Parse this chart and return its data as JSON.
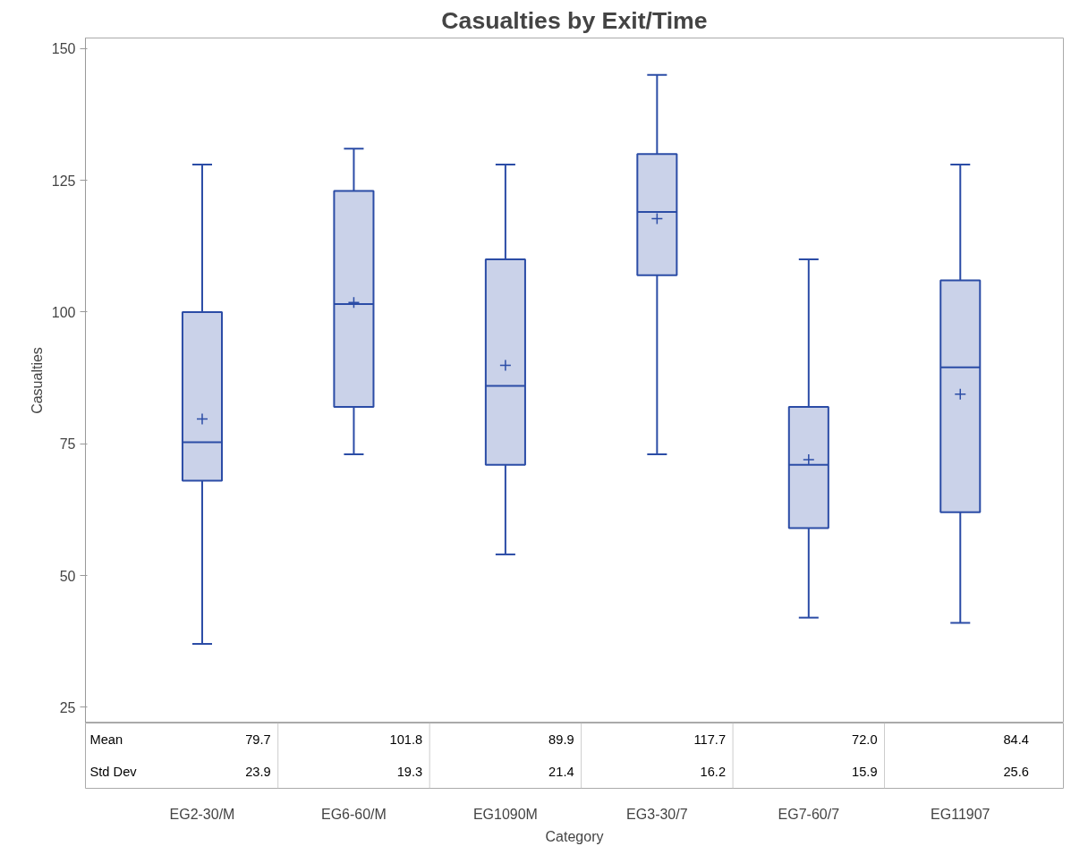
{
  "chart_data": {
    "type": "box",
    "title": "Casualties by Exit/Time",
    "xlabel": "Category",
    "ylabel": "Casualties",
    "categories": [
      "EG2-30/M",
      "EG6-60/M",
      "EG1090M",
      "EG3-30/7",
      "EG7-60/7",
      "EG11907"
    ],
    "series": [
      {
        "color": "#2b4ca6",
        "marker": "cross",
        "boxes": [
          {
            "low": 37,
            "q1": 68,
            "median": 75.3,
            "q3": 100,
            "high": 128,
            "mean": 79.7
          },
          {
            "low": 73,
            "q1": 82,
            "median": 101.5,
            "q3": 123,
            "high": 131,
            "mean": 101.8
          },
          {
            "low": 54,
            "q1": 71,
            "median": 86,
            "q3": 110,
            "high": 128,
            "mean": 89.9
          },
          {
            "low": 73,
            "q1": 107,
            "median": 119,
            "q3": 130,
            "high": 145,
            "mean": 117.7
          },
          {
            "low": 42,
            "q1": 59,
            "median": 71,
            "q3": 82,
            "high": 110,
            "mean": 72.0
          },
          {
            "low": 41,
            "q1": 62,
            "median": 89.5,
            "q3": 106,
            "high": 128,
            "mean": 84.4
          }
        ]
      }
    ],
    "ylim": [
      22,
      152
    ],
    "yticks": [
      25,
      50,
      75,
      100,
      125,
      150
    ],
    "annotations": [
      "Mean",
      "79.7",
      "101.8",
      "89.9",
      "117.7",
      "72.0",
      "84.4",
      "Std Dev",
      "23.9",
      "19.3",
      "21.4",
      "16.2",
      "15.9",
      "25.6"
    ]
  }
}
